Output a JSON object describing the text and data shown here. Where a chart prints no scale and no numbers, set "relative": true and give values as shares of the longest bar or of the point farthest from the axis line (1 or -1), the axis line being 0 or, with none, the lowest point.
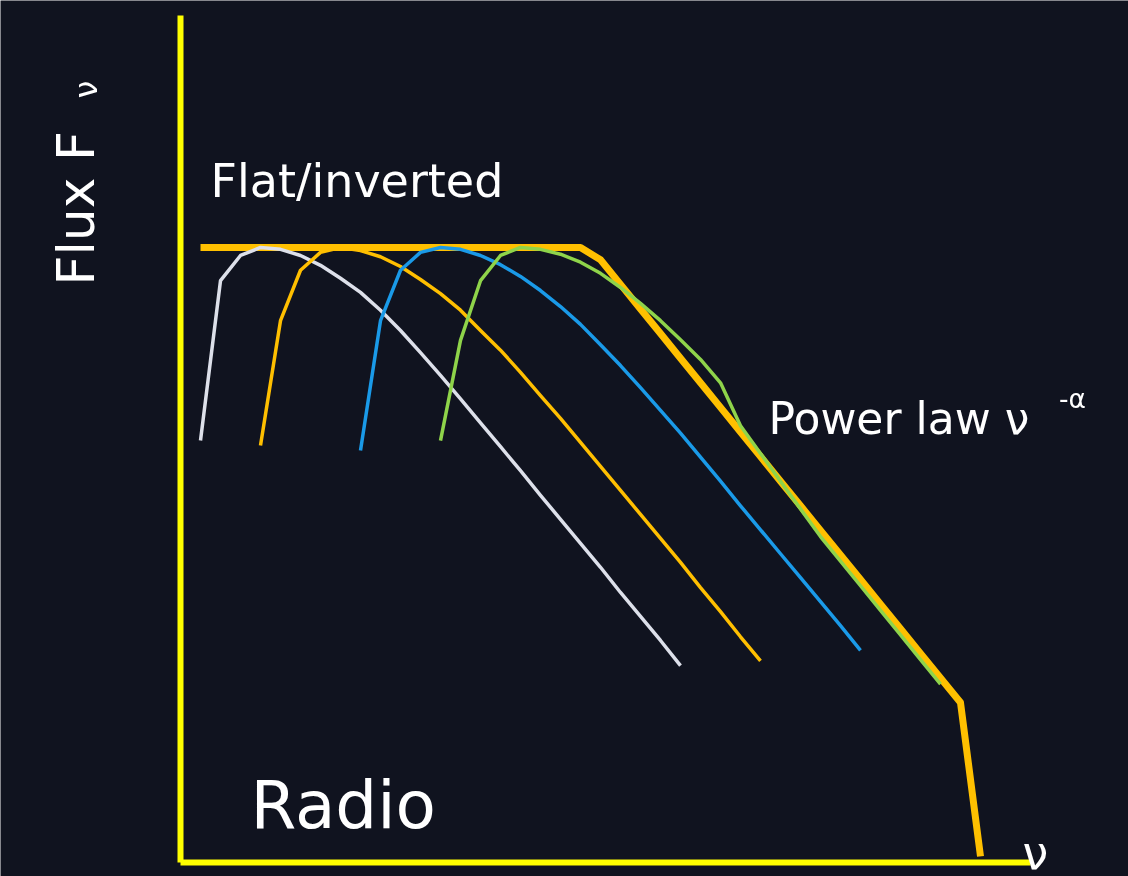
{
  "chart_data": {
    "type": "line",
    "relative": true,
    "xlabel": "ν",
    "ylabel": "Flux F$_{ν}$",
    "annotations": [
      "Flat/inverted",
      "Power law ν$^{-α}$",
      "Radio"
    ],
    "categories": [
      null,
      null,
      null,
      null,
      null,
      null,
      null,
      null,
      null,
      null,
      null,
      null,
      null,
      null,
      null,
      null,
      null,
      null,
      null,
      null,
      null,
      null,
      null,
      null,
      null,
      null,
      null,
      null,
      null,
      null,
      null,
      null,
      null,
      null,
      null,
      null,
      null,
      null,
      null,
      null,
      null,
      null,
      null
    ],
    "series": [
      {
        "color": "#ffc000",
        "values": [
          null,
          1,
          1,
          1,
          1,
          1,
          1,
          1,
          1,
          1,
          1,
          1,
          1,
          1,
          1,
          1,
          1,
          1,
          1,
          1,
          1,
          0.98,
          0.94,
          0.9,
          0.86,
          0.82,
          0.78,
          0.74,
          0.7,
          0.66,
          0.62,
          0.58,
          0.54,
          0.5,
          0.46,
          0.42,
          0.38,
          0.34,
          0.3,
          0.26,
          0.01,
          null,
          null
        ]
      },
      {
        "color": "#dde0ea",
        "values": [
          null,
          0.686,
          0.946,
          0.987,
          1,
          0.997,
          0.987,
          0.971,
          0.95,
          0.927,
          0.898,
          0.865,
          0.829,
          0.792,
          0.754,
          0.715,
          0.676,
          0.637,
          0.597,
          0.558,
          0.519,
          0.48,
          0.439,
          0.4,
          0.361,
          0.32,
          null,
          null,
          null,
          null,
          null,
          null,
          null,
          null,
          null,
          null,
          null,
          null,
          null,
          null,
          null,
          null,
          null
        ]
      },
      {
        "color": "#ffbf00",
        "values": [
          null,
          null,
          null,
          null,
          0.678,
          0.881,
          0.963,
          0.992,
          1,
          0.995,
          0.985,
          0.969,
          0.948,
          0.925,
          0.898,
          0.865,
          0.833,
          0.797,
          0.759,
          0.722,
          0.683,
          0.644,
          0.605,
          0.566,
          0.527,
          0.488,
          0.447,
          0.408,
          0.367,
          0.328,
          null,
          null,
          null,
          null,
          null,
          null,
          null,
          null,
          null,
          null,
          null,
          null,
          null
        ]
      },
      {
        "color": "#1a9ae8",
        "values": [
          null,
          null,
          null,
          null,
          null,
          null,
          null,
          null,
          null,
          0.67,
          0.881,
          0.963,
          0.992,
          1,
          0.997,
          0.987,
          0.972,
          0.953,
          0.93,
          0.904,
          0.875,
          0.842,
          0.808,
          0.772,
          0.735,
          0.698,
          0.659,
          0.62,
          0.58,
          0.541,
          0.502,
          0.463,
          0.424,
          0.385,
          0.345,
          null,
          null,
          null,
          null,
          null,
          null,
          null,
          null
        ]
      },
      {
        "color": "#8fd44a",
        "values": [
          null,
          null,
          null,
          null,
          null,
          null,
          null,
          null,
          null,
          null,
          null,
          null,
          null,
          0.686,
          0.849,
          0.946,
          0.987,
          1,
          0.997,
          0.989,
          0.976,
          0.958,
          0.935,
          0.909,
          0.881,
          0.85,
          0.818,
          0.78,
          0.71,
          0.665,
          0.62,
          0.575,
          0.53,
          0.49,
          0.45,
          0.41,
          0.37,
          0.33,
          0.29,
          null,
          null,
          null,
          null
        ]
      }
    ]
  }
}
